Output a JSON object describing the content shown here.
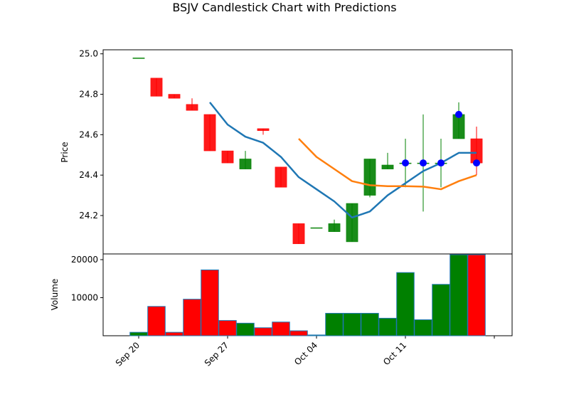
{
  "chart_data": {
    "type": "candlestick",
    "title": "BSJV Candlestick Chart with Predictions",
    "colors": {
      "up": "#008000",
      "down": "#ff0000",
      "ma_short": "#1f77b4",
      "ma_long": "#ff7f0e",
      "prediction": "#0000ff",
      "volume_edge": "#1f77b4"
    },
    "price_panel": {
      "ylabel": "Price",
      "ylim": [
        24.01,
        25.02
      ],
      "yticks": [
        24.2,
        24.4,
        24.6,
        24.8,
        25.0
      ],
      "ytick_labels": [
        "24.2",
        "24.4",
        "24.6",
        "24.8",
        "25.0"
      ]
    },
    "volume_panel": {
      "ylabel": "Volume",
      "ylim": [
        0,
        21500
      ],
      "yticks": [
        10000,
        20000
      ],
      "ytick_labels": [
        "10000",
        "20000"
      ]
    },
    "xlim": [
      -2.0,
      21.0
    ],
    "xticks": [
      0,
      5,
      10,
      15,
      20
    ],
    "xtick_labels": [
      "Sep 20",
      "Sep 27",
      "Oct 04",
      "Oct 11",
      ""
    ],
    "candles": [
      {
        "x": 0,
        "open": 24.98,
        "high": 24.98,
        "low": 24.98,
        "close": 24.98,
        "volume": 900
      },
      {
        "x": 1,
        "open": 24.88,
        "high": 24.88,
        "low": 24.79,
        "close": 24.79,
        "volume": 7700
      },
      {
        "x": 2,
        "open": 24.8,
        "high": 24.8,
        "low": 24.78,
        "close": 24.78,
        "volume": 900
      },
      {
        "x": 3,
        "open": 24.75,
        "high": 24.78,
        "low": 24.72,
        "close": 24.72,
        "volume": 9600
      },
      {
        "x": 4,
        "open": 24.7,
        "high": 24.7,
        "low": 24.52,
        "close": 24.52,
        "volume": 17300
      },
      {
        "x": 5,
        "open": 24.52,
        "high": 24.52,
        "low": 24.46,
        "close": 24.46,
        "volume": 4000
      },
      {
        "x": 6,
        "open": 24.43,
        "high": 24.52,
        "low": 24.43,
        "close": 24.48,
        "volume": 3300
      },
      {
        "x": 7,
        "open": 24.63,
        "high": 24.63,
        "low": 24.6,
        "close": 24.62,
        "volume": 2100
      },
      {
        "x": 8,
        "open": 24.44,
        "high": 24.44,
        "low": 24.34,
        "close": 24.34,
        "volume": 3600
      },
      {
        "x": 9,
        "open": 24.16,
        "high": 24.16,
        "low": 24.06,
        "close": 24.06,
        "volume": 1300
      },
      {
        "x": 10,
        "open": 24.14,
        "high": 24.14,
        "low": 24.14,
        "close": 24.14,
        "volume": 200
      },
      {
        "x": 11,
        "open": 24.12,
        "high": 24.18,
        "low": 24.12,
        "close": 24.16,
        "volume": 5900
      },
      {
        "x": 12,
        "open": 24.07,
        "high": 24.26,
        "low": 24.07,
        "close": 24.26,
        "volume": 5900
      },
      {
        "x": 13,
        "open": 24.3,
        "high": 24.48,
        "low": 24.29,
        "close": 24.48,
        "volume": 5900
      },
      {
        "x": 14,
        "open": 24.43,
        "high": 24.51,
        "low": 24.43,
        "close": 24.45,
        "volume": 4600
      },
      {
        "x": 15,
        "open": 24.46,
        "high": 24.58,
        "low": 24.34,
        "close": 24.46,
        "volume": 16600
      },
      {
        "x": 16,
        "open": 24.46,
        "high": 24.7,
        "low": 24.22,
        "close": 24.46,
        "volume": 4200
      },
      {
        "x": 17,
        "open": 24.46,
        "high": 24.58,
        "low": 24.34,
        "close": 24.46,
        "volume": 13500
      },
      {
        "x": 18,
        "open": 24.58,
        "high": 24.76,
        "low": 24.58,
        "close": 24.7,
        "volume": 21300
      },
      {
        "x": 19,
        "open": 24.58,
        "high": 24.64,
        "low": 24.4,
        "close": 24.46,
        "volume": 21300
      }
    ],
    "series": [
      {
        "type": "line",
        "x": [
          4,
          5,
          6,
          7,
          8,
          9,
          10,
          11,
          12,
          13,
          14,
          15,
          16,
          17,
          18,
          19
        ],
        "values": [
          24.76,
          24.65,
          24.59,
          24.56,
          24.49,
          24.39,
          24.33,
          24.27,
          24.19,
          24.22,
          24.3,
          24.36,
          24.42,
          24.46,
          24.51,
          24.51
        ]
      },
      {
        "type": "line",
        "x": [
          9,
          10,
          11,
          12,
          13,
          14,
          15,
          16,
          17,
          18,
          19
        ],
        "values": [
          24.58,
          24.49,
          24.43,
          24.37,
          24.35,
          24.345,
          24.345,
          24.343,
          24.33,
          24.37,
          24.4
        ]
      }
    ],
    "predictions": {
      "x": [
        15,
        16,
        17,
        18,
        19
      ],
      "values": [
        24.46,
        24.46,
        24.46,
        24.7,
        24.46
      ]
    }
  }
}
